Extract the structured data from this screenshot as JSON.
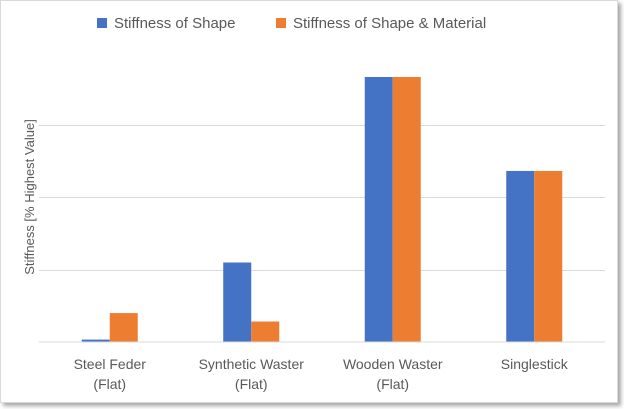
{
  "chart_data": {
    "type": "bar",
    "title": "",
    "xlabel": "",
    "ylabel": "Stiffness [% Highest Value]",
    "ylim": [
      0,
      110
    ],
    "grid": true,
    "legend_position": "top",
    "categories": [
      [
        "Steel Feder",
        "(Flat)"
      ],
      [
        "Synthetic Waster",
        "(Flat)"
      ],
      [
        "Wooden Waster",
        "(Flat)"
      ],
      [
        "Singlestick"
      ]
    ],
    "series": [
      {
        "name": "Stiffness of Shape",
        "color": "#4472c4",
        "values": [
          1,
          33,
          110,
          71
        ]
      },
      {
        "name": "Stiffness of Shape & Material",
        "color": "#ed7d31",
        "values": [
          12,
          8.5,
          110,
          71
        ]
      }
    ]
  }
}
